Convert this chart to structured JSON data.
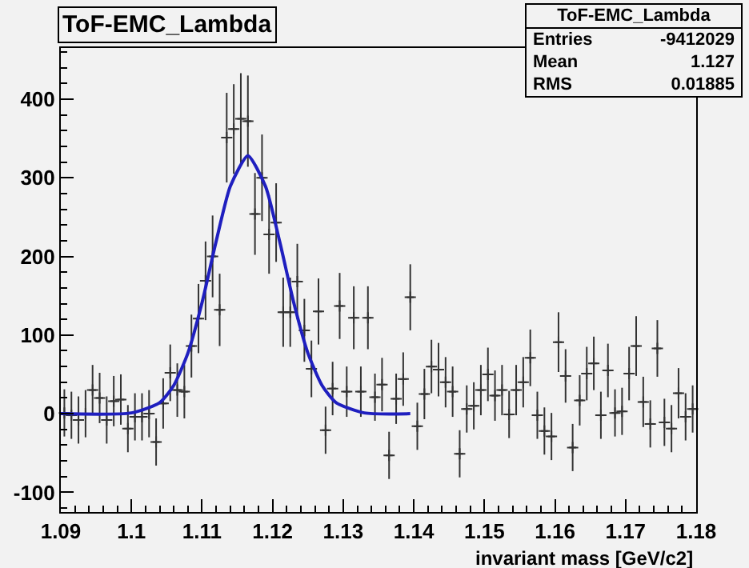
{
  "chart_data": {
    "type": "scatter",
    "title": "ToF-EMC_Lambda",
    "xlabel": "invariant mass [GeV/c2]",
    "annotations": [
      "ToF-EMC_Lambda",
      "Entries -9412029",
      "Mean 1.127",
      "RMS 0.01885"
    ],
    "xlim": [
      1.09,
      1.18
    ],
    "xticks": [
      1.09,
      1.1,
      1.11,
      1.12,
      1.13,
      1.14,
      1.15,
      1.16,
      1.17,
      1.18
    ],
    "ylim": [
      -125,
      465
    ],
    "yticks": [
      -100,
      0,
      100,
      200,
      300,
      400
    ],
    "x": [
      1.0905,
      1.0915,
      1.0925,
      1.0935,
      1.0945,
      1.0955,
      1.0965,
      1.0975,
      1.0985,
      1.0995,
      1.1005,
      1.1015,
      1.1025,
      1.1035,
      1.1045,
      1.1055,
      1.1065,
      1.1075,
      1.1085,
      1.1095,
      1.1105,
      1.1115,
      1.1125,
      1.1135,
      1.1145,
      1.1155,
      1.1165,
      1.1175,
      1.1185,
      1.1195,
      1.1205,
      1.1215,
      1.1225,
      1.1235,
      1.1245,
      1.1255,
      1.1265,
      1.1275,
      1.1285,
      1.1295,
      1.1305,
      1.1315,
      1.1325,
      1.1335,
      1.1345,
      1.1355,
      1.1365,
      1.1375,
      1.1385,
      1.1395,
      1.1405,
      1.1415,
      1.1425,
      1.1435,
      1.1445,
      1.1455,
      1.1465,
      1.1475,
      1.1485,
      1.1495,
      1.1505,
      1.1515,
      1.1525,
      1.1535,
      1.1545,
      1.1555,
      1.1565,
      1.1575,
      1.1585,
      1.1595,
      1.1605,
      1.1615,
      1.1625,
      1.1635,
      1.1645,
      1.1655,
      1.1665,
      1.1675,
      1.1685,
      1.1695,
      1.1705,
      1.1715,
      1.1725,
      1.1735,
      1.1745,
      1.1755,
      1.1765,
      1.1775,
      1.1785,
      1.1795
    ],
    "series": [
      {
        "color": "#333333",
        "marker": "cross",
        "values": [
          1,
          -2,
          -8,
          0,
          30,
          20,
          -8,
          16,
          18,
          -19,
          -4,
          -4,
          0,
          -36,
          13,
          52,
          30,
          28,
          86,
          121,
          169,
          200,
          132,
          351,
          362,
          375,
          372,
          254,
          300,
          228,
          243,
          129,
          129,
          168,
          106,
          57,
          130,
          -21,
          32,
          137,
          28,
          122,
          28,
          122,
          21,
          37,
          -53,
          19,
          44,
          148,
          -16,
          25,
          60,
          56,
          40,
          28,
          -51,
          6,
          10,
          30,
          50,
          23,
          30,
          -1,
          30,
          40,
          71,
          -2,
          -22,
          -29,
          91,
          48,
          -43,
          17,
          51,
          64,
          -2,
          55,
          1,
          3,
          51,
          86,
          15,
          -13,
          83,
          -11,
          -19,
          26,
          -4,
          6
        ],
        "errors": [
          30,
          30,
          30,
          30,
          32,
          32,
          30,
          32,
          32,
          30,
          30,
          30,
          30,
          30,
          32,
          36,
          34,
          34,
          40,
          44,
          50,
          52,
          46,
          57,
          57,
          58,
          58,
          52,
          55,
          50,
          50,
          44,
          44,
          48,
          40,
          36,
          42,
          30,
          34,
          42,
          32,
          40,
          32,
          40,
          30,
          34,
          30,
          32,
          34,
          42,
          30,
          32,
          34,
          34,
          32,
          32,
          30,
          30,
          30,
          32,
          34,
          32,
          32,
          30,
          32,
          32,
          36,
          30,
          30,
          30,
          38,
          34,
          30,
          32,
          34,
          34,
          30,
          34,
          30,
          30,
          34,
          38,
          32,
          30,
          36,
          30,
          30,
          32,
          30,
          30
        ],
        "xerrors": [
          0.0005,
          0.0005,
          0.0005,
          0.0005,
          0.0005,
          0.0005,
          0.0005,
          0.0005,
          0.0005,
          0.0005,
          0.0005,
          0.0005,
          0.0005,
          0.0005,
          0.0005,
          0.0005,
          0.0005,
          0.0005,
          0.0005,
          0.0005,
          0.0005,
          0.0005,
          0.0005,
          0.0005,
          0.0005,
          0.0005,
          0.0005,
          0.0005,
          0.0005,
          0.0005,
          0.0005,
          0.0005,
          0.0005,
          0.0005,
          0.0005,
          0.0005,
          0.0005,
          0.0005,
          0.0005,
          0.0005,
          0.0005,
          0.0005,
          0.0005,
          0.0005,
          0.0005,
          0.0005,
          0.0005,
          0.0005,
          0.0005,
          0.0005,
          0.0005,
          0.0005,
          0.0005,
          0.0005,
          0.0005,
          0.0005,
          0.0005,
          0.0005,
          0.0005,
          0.0005,
          0.0005,
          0.0005,
          0.0005,
          0.0005,
          0.0005,
          0.0005,
          0.0005,
          0.0005,
          0.0005,
          0.0005,
          0.0005,
          0.0005,
          0.0005,
          0.0005,
          0.0005,
          0.0005,
          0.0005,
          0.0005,
          0.0005,
          0.0005,
          0.0005,
          0.0005,
          0.0005,
          0.0005,
          0.0005,
          0.0005,
          0.0005,
          0.0005,
          0.0005,
          0.0005
        ]
      },
      {
        "type": "line",
        "color": "#1f1fbf",
        "line_style": "solid",
        "x": [
          1.09,
          1.1,
          1.104,
          1.106,
          1.108,
          1.11,
          1.112,
          1.114,
          1.1165,
          1.119,
          1.121,
          1.123,
          1.125,
          1.127,
          1.129,
          1.133,
          1.1395
        ],
        "values": [
          0,
          1,
          14,
          36,
          77,
          141,
          219,
          289,
          328,
          289,
          219,
          141,
          77,
          36,
          14,
          1,
          0
        ]
      }
    ]
  }
}
